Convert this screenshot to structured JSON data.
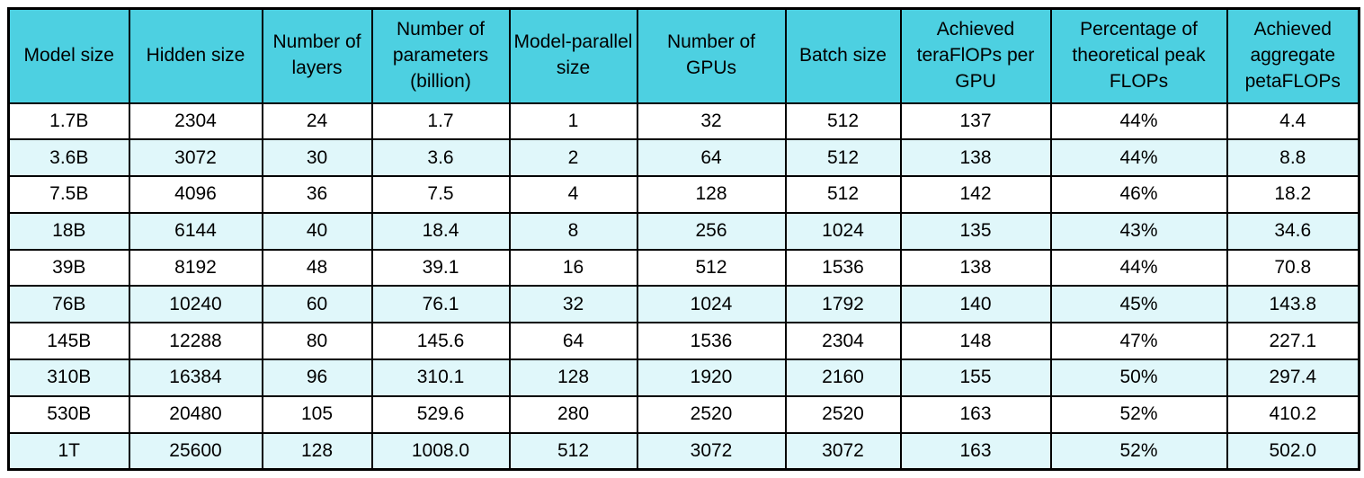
{
  "colors": {
    "header_bg": "#4dd0e1",
    "row_bg": "#ffffff",
    "row_alt_bg": "#e0f7fa",
    "border": "#000000",
    "text": "#000000"
  },
  "chart_data": {
    "type": "table",
    "columns": [
      "Model size",
      "Hidden size",
      "Number of layers",
      "Number of parameters (billion)",
      "Model-parallel size",
      "Number of GPUs",
      "Batch size",
      "Achieved teraFlOPs per GPU",
      "Percentage of theoretical peak FLOPs",
      "Achieved aggregate petaFLOPs"
    ],
    "rows": [
      [
        "1.7B",
        "2304",
        "24",
        "1.7",
        "1",
        "32",
        "512",
        "137",
        "44%",
        "4.4"
      ],
      [
        "3.6B",
        "3072",
        "30",
        "3.6",
        "2",
        "64",
        "512",
        "138",
        "44%",
        "8.8"
      ],
      [
        "7.5B",
        "4096",
        "36",
        "7.5",
        "4",
        "128",
        "512",
        "142",
        "46%",
        "18.2"
      ],
      [
        "18B",
        "6144",
        "40",
        "18.4",
        "8",
        "256",
        "1024",
        "135",
        "43%",
        "34.6"
      ],
      [
        "39B",
        "8192",
        "48",
        "39.1",
        "16",
        "512",
        "1536",
        "138",
        "44%",
        "70.8"
      ],
      [
        "76B",
        "10240",
        "60",
        "76.1",
        "32",
        "1024",
        "1792",
        "140",
        "45%",
        "143.8"
      ],
      [
        "145B",
        "12288",
        "80",
        "145.6",
        "64",
        "1536",
        "2304",
        "148",
        "47%",
        "227.1"
      ],
      [
        "310B",
        "16384",
        "96",
        "310.1",
        "128",
        "1920",
        "2160",
        "155",
        "50%",
        "297.4"
      ],
      [
        "530B",
        "20480",
        "105",
        "529.6",
        "280",
        "2520",
        "2520",
        "163",
        "52%",
        "410.2"
      ],
      [
        "1T",
        "25600",
        "128",
        "1008.0",
        "512",
        "3072",
        "3072",
        "163",
        "52%",
        "502.0"
      ]
    ]
  }
}
